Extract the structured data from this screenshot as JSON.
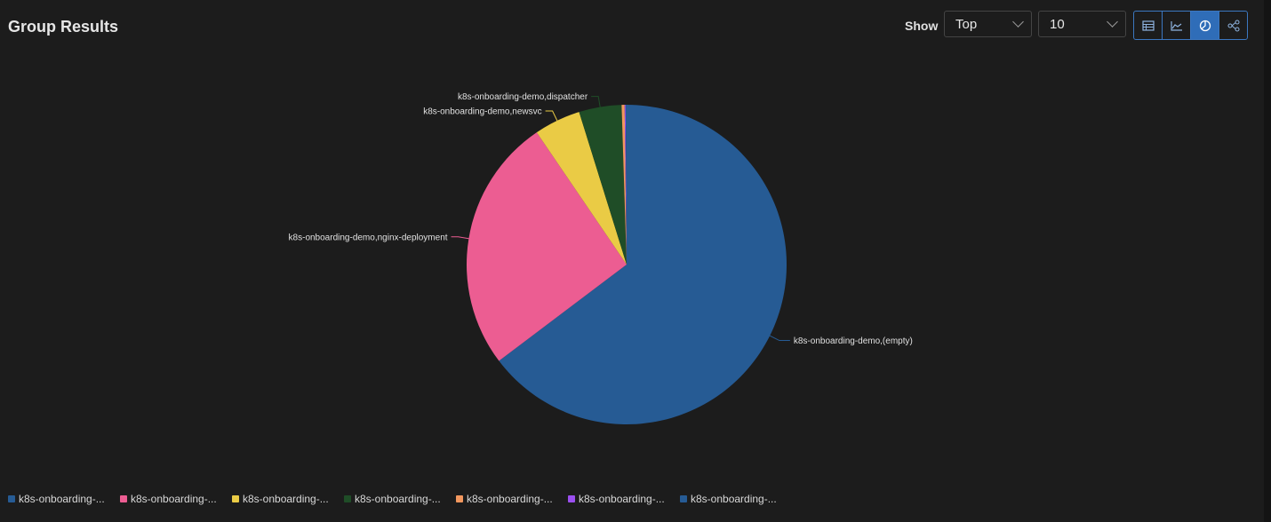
{
  "header": {
    "title": "Group Results",
    "show_label": "Show",
    "show_select": "Top",
    "count_select": "10",
    "view_buttons": [
      {
        "icon": "table-icon",
        "active": false
      },
      {
        "icon": "line-chart-icon",
        "active": false
      },
      {
        "icon": "pie-chart-icon",
        "active": true
      },
      {
        "icon": "graph-icon",
        "active": false
      }
    ]
  },
  "chart_data": {
    "type": "pie",
    "unit": "percent (estimated)",
    "slices": [
      {
        "label": "k8s-onboarding-demo,(empty)",
        "legend": "k8s-onboarding-...",
        "value": 64.7,
        "color": "#265b94"
      },
      {
        "label": "k8s-onboarding-demo,nginx-deployment",
        "legend": "k8s-onboarding-...",
        "value": 25.8,
        "color": "#ec5d92"
      },
      {
        "label": "k8s-onboarding-demo,newsvc",
        "legend": "k8s-onboarding-...",
        "value": 4.7,
        "color": "#eacb45"
      },
      {
        "label": "k8s-onboarding-demo,dispatcher",
        "legend": "k8s-onboarding-...",
        "value": 4.3,
        "color": "#1f4d27"
      },
      {
        "label": "",
        "legend": "k8s-onboarding-...",
        "value": 0.3,
        "color": "#f2975e"
      },
      {
        "label": "",
        "legend": "k8s-onboarding-...",
        "value": 0.1,
        "color": "#9b4ff0"
      },
      {
        "label": "",
        "legend": "k8s-onboarding-...",
        "value": 0.1,
        "color": "#265b94"
      }
    ],
    "legend_position": "bottom-left"
  }
}
